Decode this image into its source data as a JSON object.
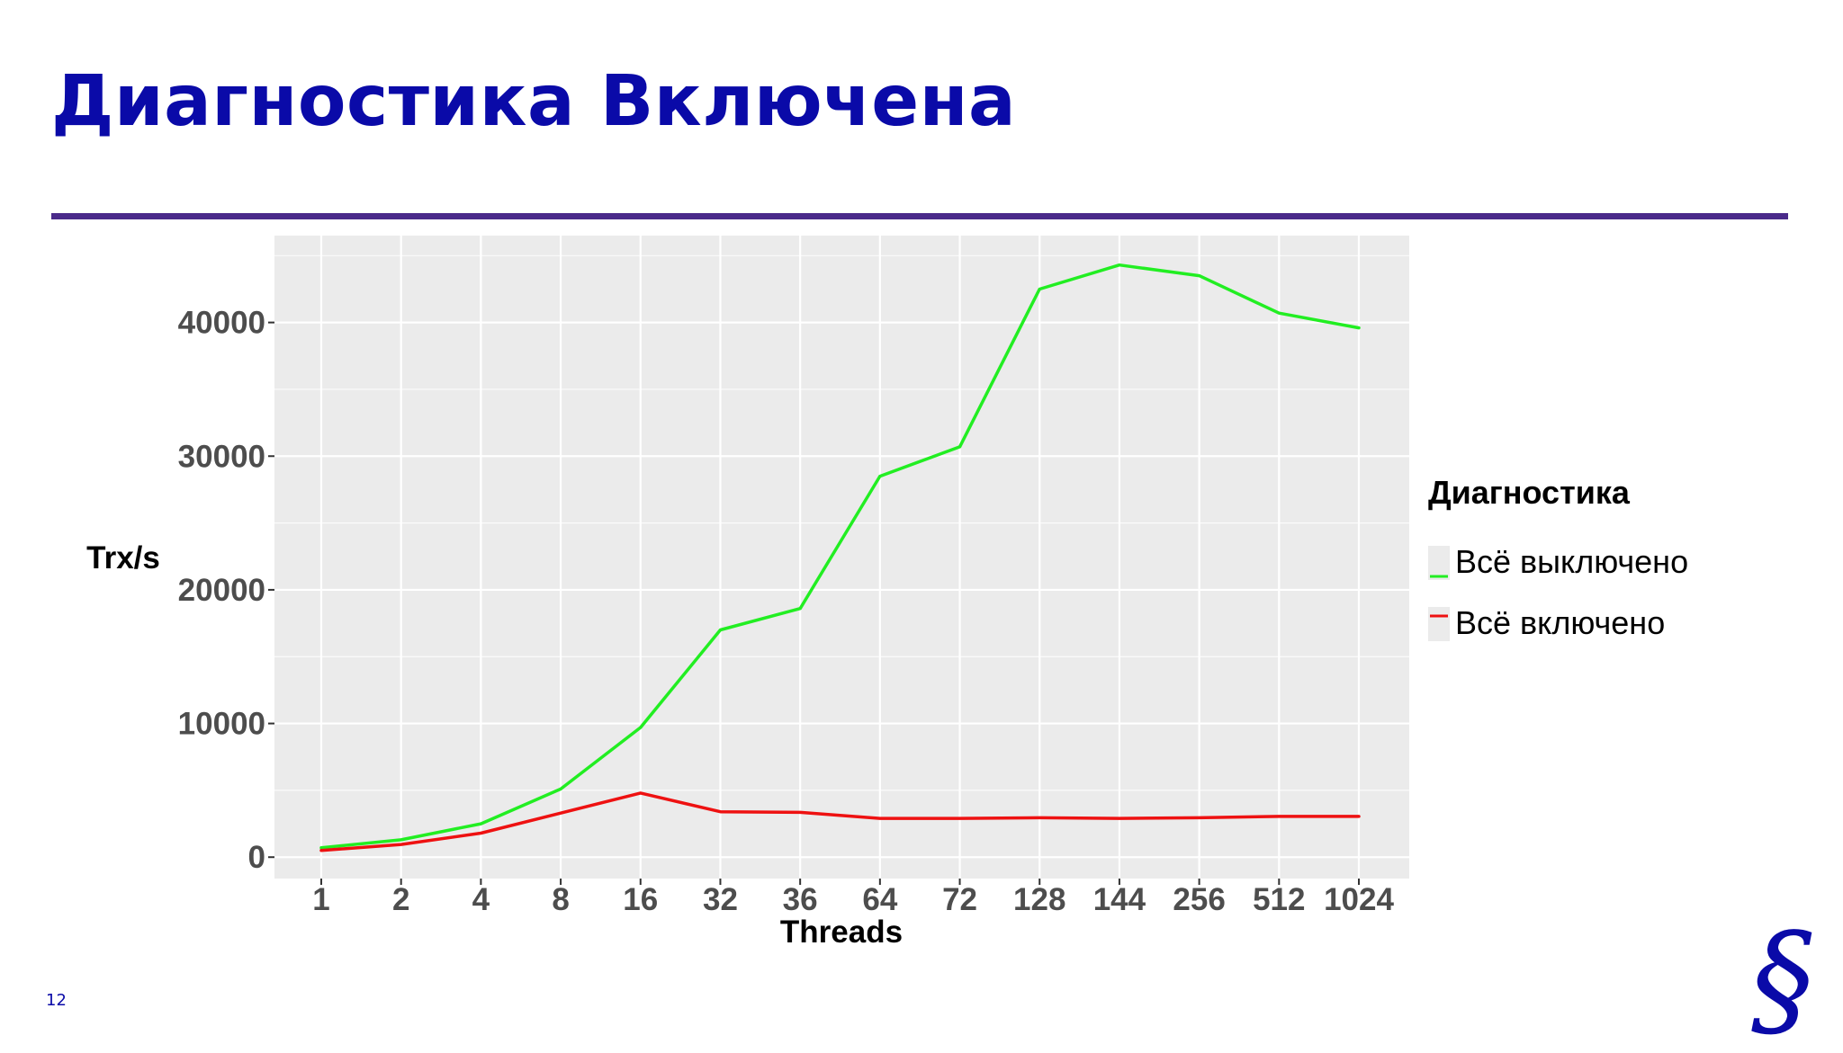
{
  "slide": {
    "title": "Диагностика Включена",
    "page_number": "12",
    "logo_glyph": "§"
  },
  "colors": {
    "title": "#0a0aa8",
    "rule": "#4a2a8a",
    "panel_bg": "#ebebeb",
    "grid": "#ffffff",
    "series_off": "#22ee22",
    "series_on": "#ee1111"
  },
  "chart_data": {
    "type": "line",
    "xlabel": "Threads",
    "ylabel": "Trx/s",
    "categories": [
      "1",
      "2",
      "4",
      "8",
      "16",
      "32",
      "36",
      "64",
      "72",
      "128",
      "144",
      "256",
      "512",
      "1024"
    ],
    "ylim": [
      -1600,
      46500
    ],
    "yticks": [
      0,
      10000,
      20000,
      30000,
      40000
    ],
    "grid": true,
    "legend": {
      "title": "Диагностика",
      "position": "right"
    },
    "series": [
      {
        "name": "Всё выключено",
        "color": "#22ee22",
        "values": [
          700,
          1300,
          2500,
          5100,
          9700,
          17000,
          18600,
          28500,
          30700,
          42500,
          44300,
          43500,
          40700,
          39600
        ]
      },
      {
        "name": "Всё включено",
        "color": "#ee1111",
        "values": [
          500,
          950,
          1800,
          3300,
          4800,
          3400,
          3350,
          2900,
          2900,
          2950,
          2900,
          2950,
          3050,
          3050
        ]
      }
    ]
  }
}
